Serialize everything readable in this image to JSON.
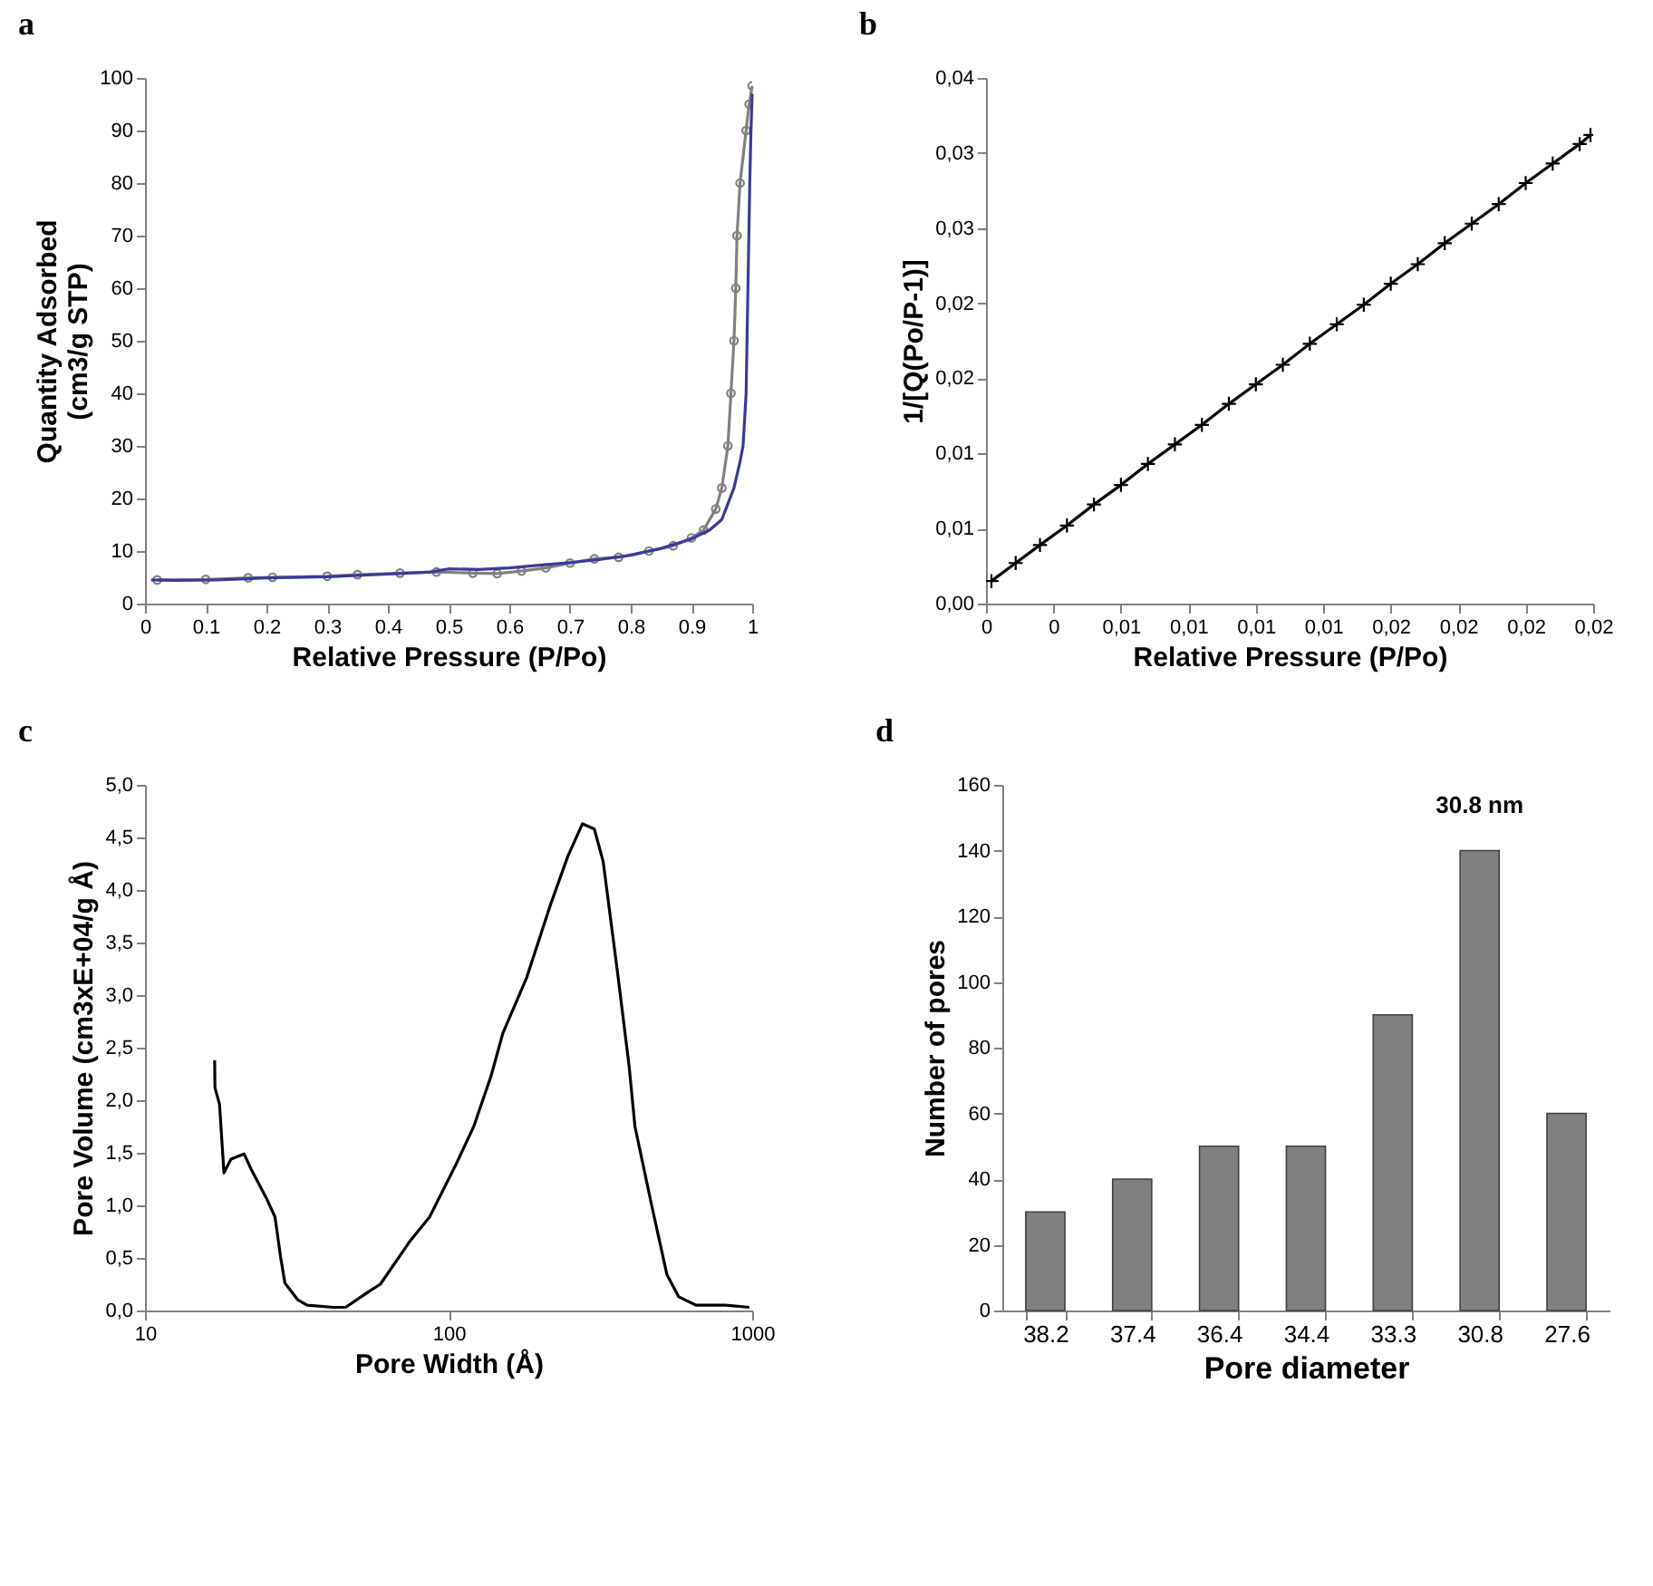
{
  "chart_data": [
    {
      "type": "line",
      "title": "a",
      "xlabel": "Relative Pressure (P/Po)",
      "ylabel": "Quantity Adsorbed\n(cm3/g STP)",
      "xlim": [
        0,
        1
      ],
      "ylim": [
        0,
        100
      ],
      "xticks": [
        0,
        0.1,
        0.2,
        0.3,
        0.4,
        0.5,
        0.6,
        0.7,
        0.8,
        0.9,
        1
      ],
      "yticks": [
        0,
        10,
        20,
        30,
        40,
        50,
        60,
        70,
        80,
        90,
        100
      ],
      "series": [
        {
          "color": "#808080",
          "marker": "circle",
          "x": [
            0.02,
            0.1,
            0.17,
            0.21,
            0.3,
            0.35,
            0.42,
            0.48,
            0.54,
            0.58,
            0.62,
            0.66,
            0.7,
            0.74,
            0.78,
            0.83,
            0.87,
            0.9,
            0.92,
            0.94,
            0.95,
            0.96,
            0.965,
            0.97,
            0.973,
            0.975,
            0.98,
            0.99,
            0.995,
            1.0
          ],
          "values": [
            4.5,
            4.6,
            4.9,
            5,
            5.2,
            5.5,
            5.8,
            6,
            5.8,
            5.7,
            6.2,
            6.8,
            7.7,
            8.5,
            8.8,
            10,
            11,
            12.5,
            14,
            18,
            22,
            30,
            40,
            50,
            60,
            70,
            80,
            90,
            95,
            98.5
          ]
        },
        {
          "color": "#3a3a9a",
          "marker": "none",
          "x": [
            0.01,
            0.05,
            0.12,
            0.2,
            0.3,
            0.4,
            0.47,
            0.5,
            0.55,
            0.6,
            0.65,
            0.7,
            0.75,
            0.8,
            0.85,
            0.9,
            0.93,
            0.95,
            0.97,
            0.98,
            0.985,
            0.99,
            0.993,
            0.996,
            0.998,
            1.0
          ],
          "values": [
            4.5,
            4.4,
            4.5,
            4.9,
            5.1,
            5.6,
            6,
            6.6,
            6.5,
            6.8,
            7.3,
            7.8,
            8.4,
            9.2,
            10.5,
            12.3,
            14,
            16,
            22,
            27,
            30,
            40,
            60,
            80,
            90,
            97
          ]
        }
      ]
    },
    {
      "type": "line",
      "title": "b",
      "xlabel": "Relative Pressure (P/Po)",
      "ylabel": "1/[Q(Po/P-1)]",
      "xlim": [
        0,
        0.0225
      ],
      "ylim": [
        0,
        0.035
      ],
      "marker": "cross",
      "xticks": [
        {
          "value": 0,
          "label": "0"
        },
        {
          "value": 0.0025,
          "label": "0"
        },
        {
          "value": 0.005,
          "label": "0,01"
        },
        {
          "value": 0.0075,
          "label": "0,01"
        },
        {
          "value": 0.01,
          "label": "0,01"
        },
        {
          "value": 0.0125,
          "label": "0,01"
        },
        {
          "value": 0.015,
          "label": "0,02"
        },
        {
          "value": 0.0175,
          "label": "0,02"
        },
        {
          "value": 0.02,
          "label": "0,02"
        },
        {
          "value": 0.0225,
          "label": "0,02"
        }
      ],
      "yticks": [
        {
          "value": 0,
          "label": "0,00"
        },
        {
          "value": 0.005,
          "label": "0,01"
        },
        {
          "value": 0.01,
          "label": "0,01"
        },
        {
          "value": 0.015,
          "label": "0,02"
        },
        {
          "value": 0.02,
          "label": "0,02"
        },
        {
          "value": 0.025,
          "label": "0,03"
        },
        {
          "value": 0.03,
          "label": "0,03"
        },
        {
          "value": 0.035,
          "label": "0,04"
        }
      ],
      "series": [
        {
          "color": "#000000",
          "x": [
            0.0002,
            0.0011,
            0.002,
            0.003,
            0.004,
            0.005,
            0.006,
            0.007,
            0.008,
            0.009,
            0.01,
            0.011,
            0.012,
            0.013,
            0.014,
            0.015,
            0.016,
            0.017,
            0.018,
            0.019,
            0.02,
            0.021,
            0.022,
            0.0224
          ],
          "values": [
            0.0015,
            0.0027,
            0.0039,
            0.0052,
            0.0066,
            0.0079,
            0.0093,
            0.0106,
            0.0119,
            0.0133,
            0.0146,
            0.0159,
            0.0173,
            0.0186,
            0.0199,
            0.0213,
            0.0226,
            0.024,
            0.0253,
            0.0266,
            0.028,
            0.0293,
            0.0306,
            0.0312
          ]
        }
      ]
    },
    {
      "type": "line",
      "title": "c",
      "xlabel": "Pore Width (Å)",
      "ylabel": "Pore Volume (cm3xE+04/g Å)",
      "log": "x",
      "xlim": [
        10,
        1000
      ],
      "ylim": [
        0,
        5
      ],
      "xticks": [
        10,
        100,
        1000
      ],
      "yticks": [
        {
          "value": 0,
          "label": "0,0"
        },
        {
          "value": 0.5,
          "label": "0,5"
        },
        {
          "value": 1,
          "label": "1,0"
        },
        {
          "value": 1.5,
          "label": "1,5"
        },
        {
          "value": 2,
          "label": "2,0"
        },
        {
          "value": 2.5,
          "label": "2,5"
        },
        {
          "value": 3,
          "label": "3,0"
        },
        {
          "value": 3.5,
          "label": "3,5"
        },
        {
          "value": 4,
          "label": "4,0"
        },
        {
          "value": 4.5,
          "label": "4,5"
        },
        {
          "value": 5,
          "label": "5,0"
        }
      ],
      "series": [
        {
          "color": "#000000",
          "x": [
            16.96,
            17.0,
            17.6,
            18.2,
            19.2,
            21.2,
            22.4,
            25.1,
            26.8,
            28.0,
            28.9,
            31.9,
            34.2,
            41.7,
            45.8,
            54.6,
            59.6,
            74.2,
            86.6,
            105.8,
            121,
            138,
            151,
            181,
            216,
            247,
            276,
            302,
            323,
            360,
            393,
            411,
            469,
            524,
            573,
            654,
            817,
            979
          ],
          "values": [
            2.38,
            2.12,
            1.96,
            1.31,
            1.44,
            1.49,
            1.34,
            1.07,
            0.89,
            0.5,
            0.26,
            0.1,
            0.05,
            0.03,
            0.03,
            0.18,
            0.25,
            0.65,
            0.89,
            1.39,
            1.75,
            2.23,
            2.64,
            3.17,
            3.85,
            4.32,
            4.63,
            4.58,
            4.27,
            3.22,
            2.33,
            1.75,
            0.97,
            0.34,
            0.13,
            0.05,
            0.05,
            0.03
          ]
        }
      ]
    },
    {
      "type": "bar",
      "title": "d",
      "xlabel": "Pore diameter",
      "ylabel": "Number of pores",
      "categories": [
        "38.2",
        "37.4",
        "36.4",
        "34.4",
        "33.3",
        "30.8",
        "27.6"
      ],
      "values": [
        30,
        40,
        50,
        50,
        90,
        140,
        60
      ],
      "color": "#808080",
      "ylim": [
        0,
        160
      ],
      "yticks": [
        0,
        20,
        40,
        60,
        80,
        100,
        120,
        140,
        160
      ],
      "annotations": [
        "30.8 nm"
      ]
    }
  ]
}
